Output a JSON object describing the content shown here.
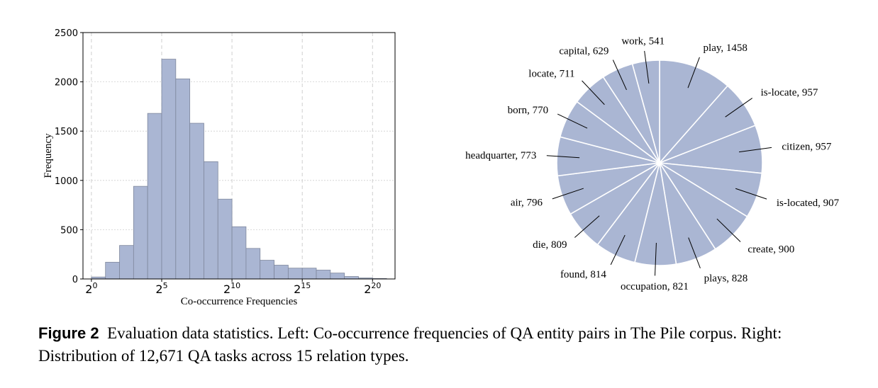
{
  "colors": {
    "bar_fill": "#aab6d3",
    "bar_edge": "#7e879c",
    "pie_fill": "#aab6d3",
    "pie_edge": "#ffffff",
    "grid": "#cfcfcf"
  },
  "chart_data": [
    {
      "type": "bar",
      "subtype": "histogram",
      "xlabel": "Co-occurrence Frequencies",
      "ylabel": "Frequency",
      "xscale": "log2",
      "xlim_exponent": [
        -0.6,
        21.6
      ],
      "ylim": [
        0,
        2500
      ],
      "yticks": [
        0,
        500,
        1000,
        1500,
        2000,
        2500
      ],
      "xticks": [
        {
          "base": "2",
          "exp": "0",
          "value": 0
        },
        {
          "base": "2",
          "exp": "5",
          "value": 5
        },
        {
          "base": "2",
          "exp": "10",
          "value": 10
        },
        {
          "base": "2",
          "exp": "15",
          "value": 15
        },
        {
          "base": "2",
          "exp": "20",
          "value": 20
        }
      ],
      "grid": "dashed",
      "bin_edges_exponent": [
        0,
        1,
        2,
        3,
        4,
        5,
        6,
        7,
        8,
        9,
        10,
        11,
        12,
        13,
        14,
        15,
        16,
        17,
        18,
        19,
        20,
        21
      ],
      "values": [
        20,
        170,
        340,
        940,
        1680,
        2230,
        2030,
        1580,
        1190,
        810,
        530,
        310,
        190,
        140,
        110,
        110,
        90,
        60,
        25,
        10,
        5
      ]
    },
    {
      "type": "pie",
      "slices": [
        {
          "label": "play",
          "value": 1458
        },
        {
          "label": "is-locate",
          "value": 957
        },
        {
          "label": "citizen",
          "value": 957
        },
        {
          "label": "is-located",
          "value": 907
        },
        {
          "label": "create",
          "value": 900
        },
        {
          "label": "plays",
          "value": 828
        },
        {
          "label": "occupation",
          "value": 821
        },
        {
          "label": "found",
          "value": 814
        },
        {
          "label": "die",
          "value": 809
        },
        {
          "label": "air",
          "value": 796
        },
        {
          "label": "headquarter",
          "value": 773
        },
        {
          "label": "born",
          "value": 770
        },
        {
          "label": "locate",
          "value": 711
        },
        {
          "label": "capital",
          "value": 629
        },
        {
          "label": "work",
          "value": 541
        }
      ]
    }
  ],
  "caption": {
    "label": "Figure 2",
    "text": "Evaluation data statistics. Left: Co-occurrence frequencies of QA entity pairs in The Pile corpus. Right: Distribution of 12,671 QA tasks across 15 relation types."
  }
}
